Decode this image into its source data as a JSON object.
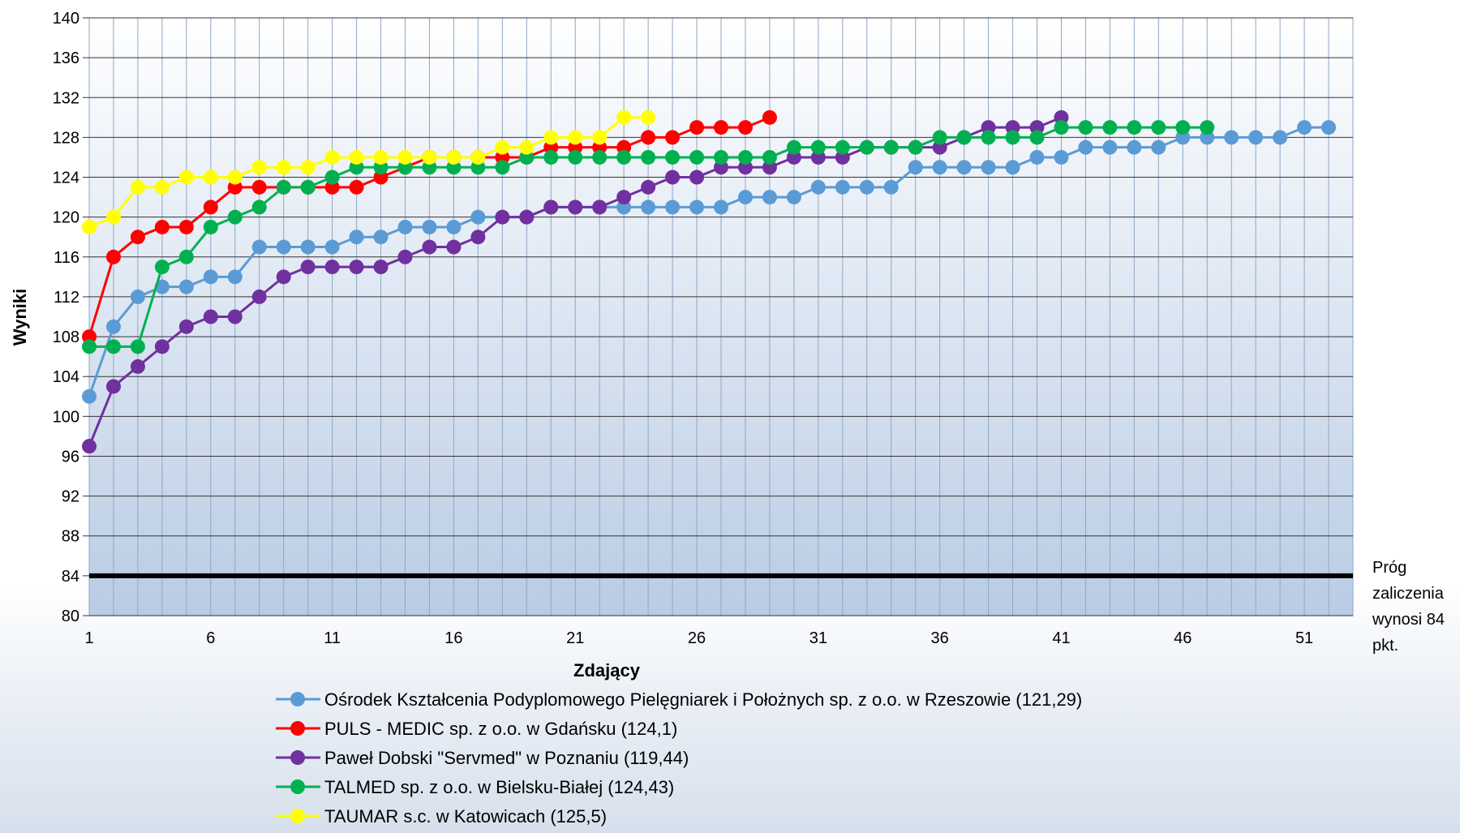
{
  "chart_data": {
    "type": "line",
    "title": "",
    "xlabel": "Zdający",
    "ylabel": "Wyniki",
    "xlim": [
      1,
      53
    ],
    "ylim": [
      80,
      140
    ],
    "x_ticks": [
      "1",
      "6",
      "11",
      "16",
      "21",
      "26",
      "31",
      "36",
      "41",
      "46",
      "51"
    ],
    "y_ticks": [
      "80",
      "84",
      "88",
      "92",
      "96",
      "100",
      "104",
      "108",
      "112",
      "116",
      "120",
      "124",
      "128",
      "132",
      "136",
      "140"
    ],
    "grid": true,
    "legend_position": "bottom",
    "threshold": {
      "value": 84,
      "color": "#000000",
      "label_lines": [
        "Próg",
        "zaliczenia",
        "wynosi 84",
        "pkt."
      ]
    },
    "series": [
      {
        "name": "Ośrodek Kształcenia Podyplomowego Pielęgniarek i Położnych sp. z o.o. w Rzeszowie (121,29)",
        "color": "#5b9bd5",
        "values": [
          102,
          109,
          112,
          113,
          113,
          114,
          114,
          117,
          117,
          117,
          117,
          118,
          118,
          119,
          119,
          119,
          120,
          120,
          120,
          121,
          121,
          121,
          121,
          121,
          121,
          121,
          121,
          122,
          122,
          122,
          123,
          123,
          123,
          123,
          125,
          125,
          125,
          125,
          125,
          126,
          126,
          127,
          127,
          127,
          127,
          128,
          128,
          128,
          128,
          128,
          129,
          129
        ]
      },
      {
        "name": "PULS - MEDIC sp. z o.o. w Gdańsku (124,1)",
        "color": "#ff0000",
        "values": [
          108,
          116,
          118,
          119,
          119,
          121,
          123,
          123,
          123,
          123,
          123,
          123,
          124,
          125,
          126,
          126,
          126,
          126,
          126,
          127,
          127,
          127,
          127,
          128,
          128,
          129,
          129,
          129,
          130
        ]
      },
      {
        "name": "Paweł Dobski \"Servmed\" w Poznaniu (119,44)",
        "color": "#7030a0",
        "values": [
          97,
          103,
          105,
          107,
          109,
          110,
          110,
          112,
          114,
          115,
          115,
          115,
          115,
          116,
          117,
          117,
          118,
          120,
          120,
          121,
          121,
          121,
          122,
          123,
          124,
          124,
          125,
          125,
          125,
          126,
          126,
          126,
          127,
          127,
          127,
          127,
          128,
          129,
          129,
          129,
          130
        ]
      },
      {
        "name": "TALMED sp. z o.o. w Bielsku-Białej (124,43)",
        "color": "#00b050",
        "values": [
          107,
          107,
          107,
          115,
          116,
          119,
          120,
          121,
          123,
          123,
          124,
          125,
          125,
          125,
          125,
          125,
          125,
          125,
          126,
          126,
          126,
          126,
          126,
          126,
          126,
          126,
          126,
          126,
          126,
          127,
          127,
          127,
          127,
          127,
          127,
          128,
          128,
          128,
          128,
          128,
          129,
          129,
          129,
          129,
          129,
          129,
          129
        ]
      },
      {
        "name": "TAUMAR s.c. w Katowicach (125,5)",
        "color": "#ffff00",
        "values": [
          119,
          120,
          123,
          123,
          124,
          124,
          124,
          125,
          125,
          125,
          126,
          126,
          126,
          126,
          126,
          126,
          126,
          127,
          127,
          128,
          128,
          128,
          130,
          130
        ]
      }
    ]
  }
}
